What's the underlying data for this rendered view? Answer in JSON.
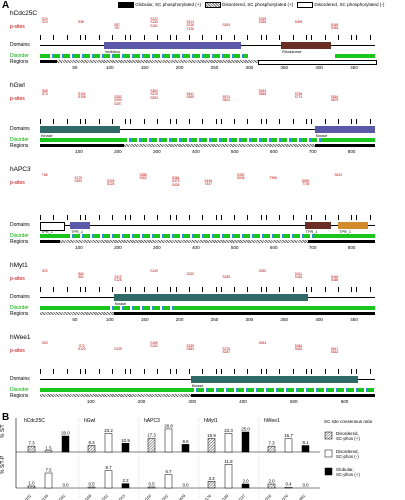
{
  "panel_a": "A",
  "panel_b": "B",
  "legend": {
    "globular": "Globular, SC phosphorylated (+)",
    "disordered_plus": "Disordered, SC phosphorylated (+)",
    "disordered_minus": "Disordered, SC phosphorylated (-)"
  },
  "rows": {
    "p_sites": "p-sites",
    "domains": "Domains",
    "disorder": "Disorder",
    "regions": "Regions"
  },
  "proteins": [
    {
      "name": "hCdc25C",
      "length": 473,
      "ticks": [
        "50",
        "100",
        "150",
        "200",
        "250",
        "300",
        "350",
        "400",
        "450"
      ],
      "domain_labels": [
        "Inhibitory",
        "Rhodanese"
      ],
      "sites": [
        "S20\nS23",
        "S38",
        "S57\nT67",
        "S122\nS130\nS151",
        "S214\nS216\nT236",
        "S263",
        "S318\nS336",
        "S409",
        "S449\nS463"
      ]
    },
    {
      "name": "hGwl",
      "length": 879,
      "ticks": [
        "100",
        "200",
        "300",
        "400",
        "500",
        "600",
        "700",
        "800"
      ],
      "domain_labels": [
        "Kinase",
        "Kinase"
      ],
      "sites": [
        "S68\nS73",
        "S194\nS195",
        "S283\nS290\nS297",
        "S360\nS375\nS393",
        "S441\nS455",
        "S574\nS601",
        "S633\nS658",
        "S755\nS774",
        "S816\nS875"
      ]
    },
    {
      "name": "hAPC3",
      "length": 824,
      "ticks": [
        "100",
        "200",
        "300",
        "400",
        "500",
        "600",
        "700",
        "800"
      ],
      "domain_labels": [
        "TPR_1",
        "TPR_1",
        "TPR_1",
        "TPR_1"
      ],
      "sites": [
        "T68",
        "S179\nS190",
        "S203\nS224",
        "S286\nS302",
        "S364\nS379\nS426",
        "S446\nT447",
        "S492\nS536",
        "T598",
        "S690\nT705",
        "S813"
      ]
    },
    {
      "name": "hMyt1",
      "length": 499,
      "ticks": [
        "50",
        "100",
        "150",
        "200",
        "250",
        "300",
        "350",
        "400",
        "450"
      ],
      "domain_labels": [
        "Kinase"
      ],
      "sites": [
        "S20",
        "S60\nS81",
        "S113\nS126",
        "S149",
        "S220",
        "S269",
        "S330",
        "S411\nS418",
        "S440\nS469"
      ]
    },
    {
      "name": "hWee1",
      "length": 646,
      "ticks": [
        "100",
        "200",
        "300",
        "400",
        "500",
        "600"
      ],
      "domain_labels": [
        "Kinase"
      ],
      "sites": [
        "S53",
        "S72\nS123",
        "S139",
        "S169\nS192",
        "S239\nS263",
        "S275\nS287",
        "S454",
        "S484\nS532",
        "S617\nS642"
      ]
    }
  ],
  "panel_b_data": {
    "ylabel_top": "% S/T",
    "ylabel_bottom": "% S/T-P",
    "legend_title": "SC site consensus ratio",
    "legend_items": [
      "Disordered, SC-phos (+)",
      "Disordered, SC-phos (-)",
      "Globular, SC-phos (+)"
    ],
    "groups": [
      {
        "name": "hCdc25C",
        "top": [
          "7.3",
          "1.5",
          "20.0"
        ],
        "bottom": [
          "1.0",
          "7.5",
          "0.0"
        ],
        "x": [
          "1/102",
          "27/145",
          "25/282"
        ]
      },
      {
        "name": "hGwl",
        "top": [
          "8.3",
          "23.2",
          "10.9"
        ],
        "bottom": [
          "0.5",
          "8.7",
          "2.2"
        ],
        "x": [
          "1/169",
          "38/252",
          "29/313"
        ]
      },
      {
        "name": "hAPC3",
        "top": [
          "17.3",
          "28.8",
          "9.5"
        ],
        "bottom": [
          "0.5",
          "6.7",
          "0.0"
        ],
        "x": [
          "1/150",
          "54/332",
          "23/429"
        ]
      },
      {
        "name": "hMyt1",
        "top": [
          "16.9",
          "23.3",
          "25.0"
        ],
        "bottom": [
          "3.3",
          "11.8",
          "2.0"
        ],
        "x": [
          "1/176",
          "34/189",
          "25/237"
        ]
      },
      {
        "name": "hWee1",
        "top": [
          "7.3",
          "16.7",
          "8.1"
        ],
        "bottom": [
          "2.0",
          "0.4",
          "0.0"
        ],
        "x": [
          "1/316",
          "21/370",
          "41/482"
        ]
      }
    ]
  },
  "colors": {
    "site_red": "#b00000",
    "disorder_green": "#19c619",
    "domain_purple": "#5a5aa8",
    "domain_brown": "#6a2e24",
    "domain_teal": "#2f6a69",
    "domain_orange": "#d28a2a",
    "blue": "#2a8fe0"
  }
}
